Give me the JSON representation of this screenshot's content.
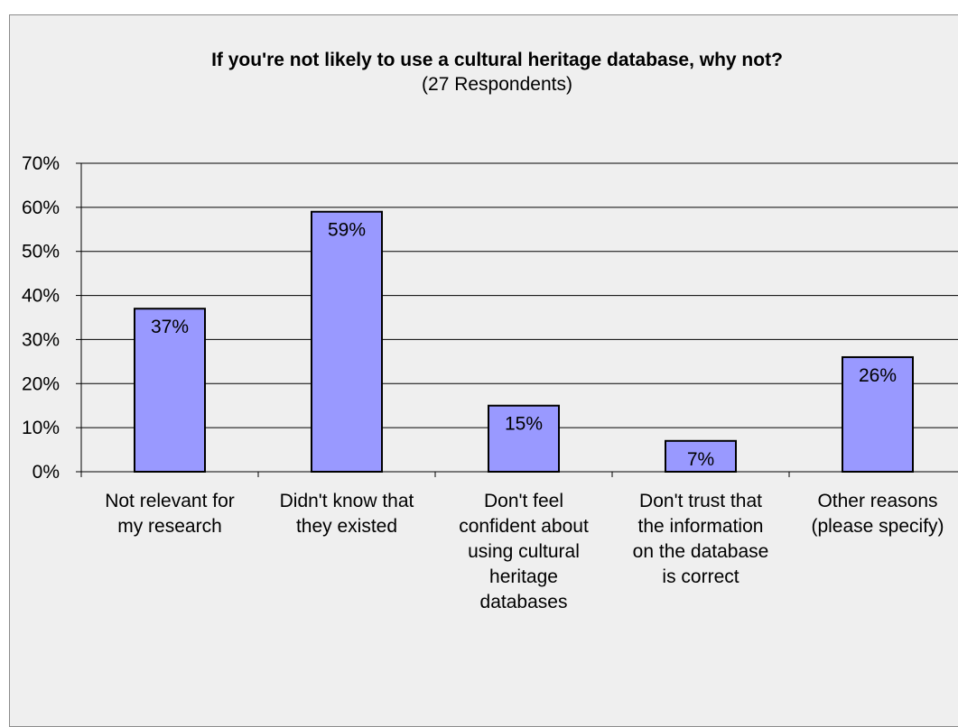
{
  "colors": {
    "bar_fill": "#9999ff",
    "bar_stroke": "#000000",
    "grid": "#000000",
    "background": "#efefef"
  },
  "chart_data": {
    "type": "bar",
    "title": "If you're not likely to use a cultural heritage database, why not?",
    "subtitle": "(27 Respondents)",
    "categories": [
      [
        "Not relevant for",
        "my research"
      ],
      [
        "Didn't know that",
        "they existed"
      ],
      [
        "Don't feel",
        "confident about",
        "using cultural",
        "heritage",
        "databases"
      ],
      [
        "Don't trust that",
        "the information",
        "on the database",
        "is correct"
      ],
      [
        "Other reasons",
        "(please specify)"
      ]
    ],
    "values": [
      37,
      59,
      15,
      7,
      26
    ],
    "data_labels": [
      "37%",
      "59%",
      "15%",
      "7%",
      "26%"
    ],
    "ylim": [
      0,
      70
    ],
    "yticks": [
      0,
      10,
      20,
      30,
      40,
      50,
      60,
      70
    ],
    "ytick_labels": [
      "0%",
      "10%",
      "20%",
      "30%",
      "40%",
      "50%",
      "60%",
      "70%"
    ],
    "grid": true
  }
}
